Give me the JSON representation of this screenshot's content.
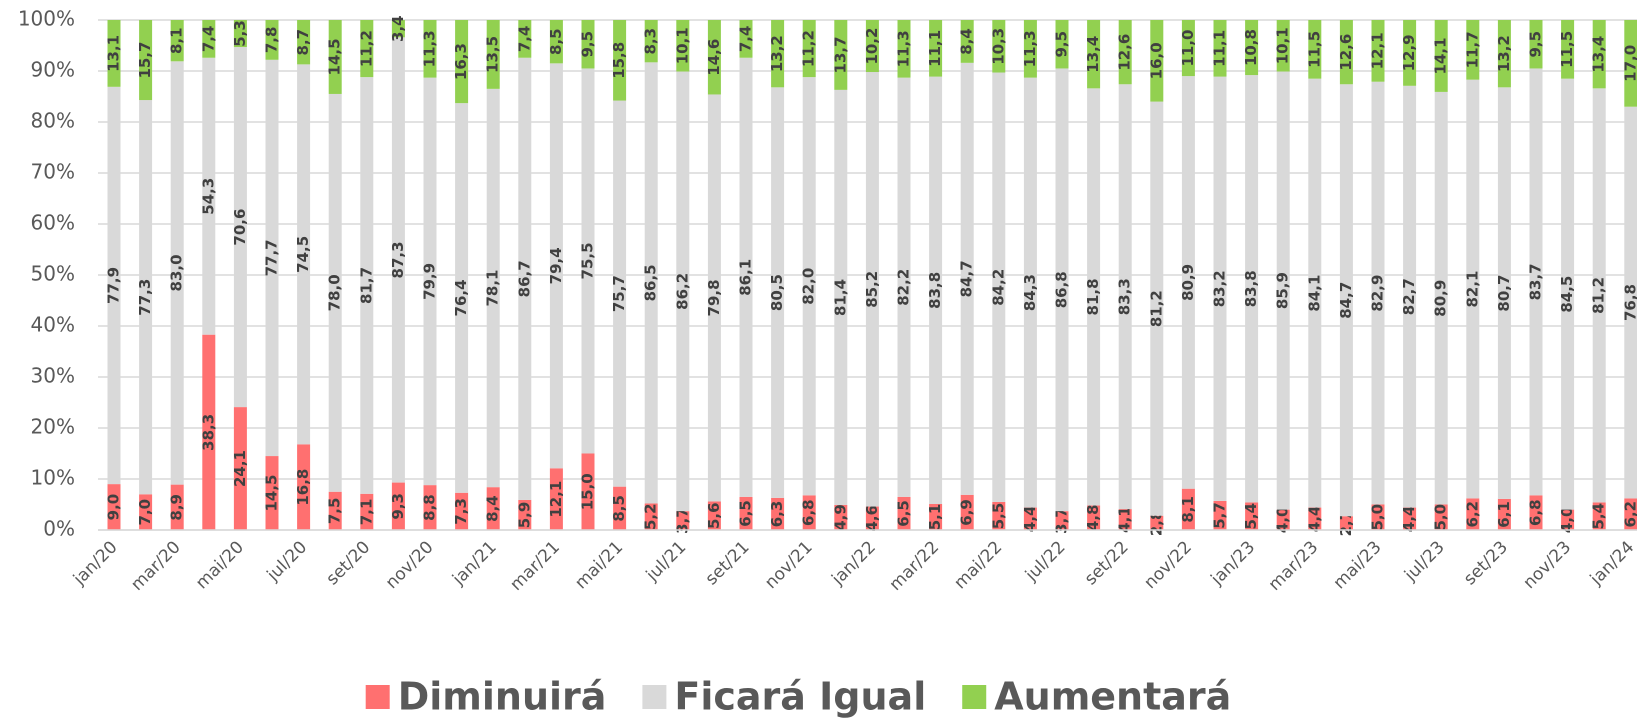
{
  "chart_data": {
    "type": "stacked_bar",
    "categories": [
      "jan/20",
      null,
      "mar/20",
      null,
      "mai/20",
      null,
      "jul/20",
      null,
      "set/20",
      null,
      "nov/20",
      null,
      "jan/21",
      null,
      "mar/21",
      null,
      "mai/21",
      null,
      "jul/21",
      null,
      "set/21",
      null,
      "nov/21",
      null,
      "jan/22",
      null,
      "mar/22",
      null,
      "mai/22",
      null,
      "jul/22",
      null,
      "set/22",
      null,
      "nov/22",
      null,
      "jan/23",
      null,
      "mar/23",
      null,
      "mai/23",
      null,
      "jul/23",
      null,
      "set/23",
      null,
      "nov/23",
      null,
      "jan/24"
    ],
    "series": [
      {
        "name": "Diminuirá",
        "color": "#ff7070",
        "values": [
          9.0,
          7.0,
          8.9,
          38.3,
          24.1,
          14.5,
          16.8,
          7.5,
          7.1,
          9.3,
          8.8,
          7.3,
          8.4,
          5.9,
          12.1,
          15.0,
          8.5,
          5.2,
          3.7,
          5.6,
          6.5,
          6.3,
          6.8,
          4.9,
          4.6,
          6.5,
          5.1,
          6.9,
          5.5,
          4.4,
          3.7,
          4.8,
          4.1,
          2.8,
          8.1,
          5.7,
          5.4,
          4.0,
          4.4,
          2.7,
          5.0,
          4.4,
          5.0,
          6.2,
          6.1,
          6.8,
          4.0,
          5.4,
          6.2
        ],
        "value_labels": [
          "9,0",
          "7,0",
          "8,9",
          "38,3",
          "24,1",
          "14,5",
          "16,8",
          "7,5",
          "7,1",
          "9,3",
          "8,8",
          "7,3",
          "8,4",
          "5,9",
          "12,1",
          "15,0",
          "8,5",
          "5,2",
          "3,7",
          "5,6",
          "6,5",
          "6,3",
          "6,8",
          "4,9",
          "4,6",
          "6,5",
          "5,1",
          "6,9",
          "5,5",
          "4,4",
          "3,7",
          "4,8",
          "4,1",
          "2,8",
          "8,1",
          "5,7",
          "5,4",
          "4,0",
          "4,4",
          "2,7",
          "5,0",
          "4,4",
          "5,0",
          "6,2",
          "6,1",
          "6,8",
          "4,0",
          "5,4",
          "6,2"
        ]
      },
      {
        "name": "Ficará Igual",
        "color": "#d9d9d9",
        "values": [
          77.9,
          77.3,
          83.0,
          54.3,
          70.6,
          77.7,
          74.5,
          78.0,
          81.7,
          87.3,
          79.9,
          76.4,
          78.1,
          86.7,
          79.4,
          75.5,
          75.7,
          86.5,
          86.2,
          79.8,
          86.1,
          80.5,
          82.0,
          81.4,
          85.2,
          82.2,
          83.8,
          84.7,
          84.2,
          84.3,
          86.8,
          81.8,
          83.3,
          81.2,
          80.9,
          83.2,
          83.8,
          85.9,
          84.1,
          84.7,
          82.9,
          82.7,
          80.9,
          82.1,
          80.7,
          83.7,
          84.5,
          81.2,
          76.8
        ],
        "value_labels": [
          "77,9",
          "77,3",
          "83,0",
          "54,3",
          "70,6",
          "77,7",
          "74,5",
          "78,0",
          "81,7",
          "87,3",
          "79,9",
          "76,4",
          "78,1",
          "86,7",
          "79,4",
          "75,5",
          "75,7",
          "86,5",
          "86,2",
          "79,8",
          "86,1",
          "80,5",
          "82,0",
          "81,4",
          "85,2",
          "82,2",
          "83,8",
          "84,7",
          "84,2",
          "84,3",
          "86,8",
          "81,8",
          "83,3",
          "81,2",
          "80,9",
          "83,2",
          "83,8",
          "85,9",
          "84,1",
          "84,7",
          "82,9",
          "82,7",
          "80,9",
          "82,1",
          "80,7",
          "83,7",
          "84,5",
          "81,2",
          "76,8"
        ]
      },
      {
        "name": "Aumentará",
        "color": "#92d050",
        "values": [
          13.1,
          15.7,
          8.1,
          7.4,
          5.3,
          7.8,
          8.7,
          14.5,
          11.2,
          3.4,
          11.3,
          16.3,
          13.5,
          7.4,
          8.5,
          9.5,
          15.8,
          8.3,
          10.1,
          14.6,
          7.4,
          13.2,
          11.2,
          13.7,
          10.2,
          11.3,
          11.1,
          8.4,
          10.3,
          11.3,
          9.5,
          13.4,
          12.6,
          16.0,
          11.0,
          11.1,
          10.8,
          10.1,
          11.5,
          12.6,
          12.1,
          12.9,
          14.1,
          11.7,
          13.2,
          9.5,
          11.5,
          13.4,
          17.0
        ],
        "value_labels": [
          "13,1",
          "15,7",
          "8,1",
          "7,4",
          "5,3",
          "7,8",
          "8,7",
          "14,5",
          "11,2",
          "3,4",
          "11,3",
          "16,3",
          "13,5",
          "7,4",
          "8,5",
          "9,5",
          "15,8",
          "8,3",
          "10,1",
          "14,6",
          "7,4",
          "13,2",
          "11,2",
          "13,7",
          "10,2",
          "11,3",
          "11,1",
          "8,4",
          "10,3",
          "11,3",
          "9,5",
          "13,4",
          "12,6",
          "16,0",
          "11,0",
          "11,1",
          "10,8",
          "10,1",
          "11,5",
          "12,6",
          "12,1",
          "12,9",
          "14,1",
          "11,7",
          "13,2",
          "9,5",
          "11,5",
          "13,4",
          "17,0"
        ]
      }
    ],
    "ylim": [
      0,
      100
    ],
    "yticks": [
      {
        "value": 0,
        "label": "0%"
      },
      {
        "value": 10,
        "label": "10%"
      },
      {
        "value": 20,
        "label": "20%"
      },
      {
        "value": 30,
        "label": "30%"
      },
      {
        "value": 40,
        "label": "40%"
      },
      {
        "value": 50,
        "label": "50%"
      },
      {
        "value": 60,
        "label": "60%"
      },
      {
        "value": 70,
        "label": "70%"
      },
      {
        "value": 80,
        "label": "80%"
      },
      {
        "value": 90,
        "label": "90%"
      },
      {
        "value": 100,
        "label": "100%"
      }
    ],
    "grid": true,
    "legend": "bottom"
  }
}
